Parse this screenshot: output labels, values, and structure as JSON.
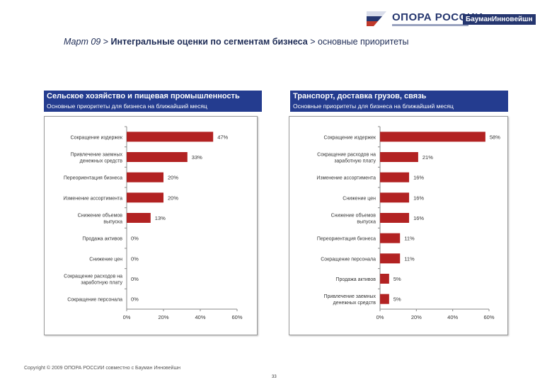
{
  "logo": {
    "name": "ОПОРА РОССИИ",
    "partner": "БауманИнновейшн",
    "colors": {
      "brand": "#25366f",
      "flag_red": "#c0392b"
    }
  },
  "header": {
    "date": "Март 09",
    "sep1": " > ",
    "segment": "Интегральные оценки по сегментам бизнеса",
    "sep2": " > ",
    "topic": "основные приоритеты"
  },
  "panels": [
    {
      "title": "Сельское хозяйство и пищевая промышленность",
      "subtitle": "Основные приоритеты для бизнеса на ближайший месяц"
    },
    {
      "title": "Транспорт, доставка грузов, связь",
      "subtitle": "Основные приоритеты для бизнеса на ближайший месяц"
    }
  ],
  "chart_data": [
    {
      "type": "bar",
      "orientation": "horizontal",
      "title": "Сельское хозяйство и пищевая промышленность",
      "categories": [
        "Сокращение издержек",
        "Привлечение заемных денежных средств",
        "Переориентация бизнеса",
        "Изменение ассортимента",
        "Снижение объемов выпуска",
        "Продажа активов",
        "Снижение цен",
        "Сокращение расходов на заработную плату",
        "Сокращение персонала"
      ],
      "values": [
        47,
        33,
        20,
        20,
        13,
        0,
        0,
        0,
        0
      ],
      "xlim": [
        0,
        60
      ],
      "ticks": [
        0,
        20,
        40,
        60
      ],
      "bar_color": "#b22222"
    },
    {
      "type": "bar",
      "orientation": "horizontal",
      "title": "Транспорт, доставка грузов, связь",
      "categories": [
        "Сокращение издержек",
        "Сокращение расходов на заработную плату",
        "Изменение ассортимента",
        "Снижение цен",
        "Снижение объемов выпуска",
        "Переориентация бизнеса",
        "Сокращение персонала",
        "Продажа активов",
        "Привлечение заемных денежных средств"
      ],
      "values": [
        58,
        21,
        16,
        16,
        16,
        11,
        11,
        5,
        5
      ],
      "xlim": [
        0,
        60
      ],
      "ticks": [
        0,
        20,
        40,
        60
      ],
      "bar_color": "#b22222"
    }
  ],
  "footer": {
    "copyright": "Copyright © 2009  ОПОРА РОССИИ совместно с Бауман Инновейшн",
    "page": "33"
  }
}
